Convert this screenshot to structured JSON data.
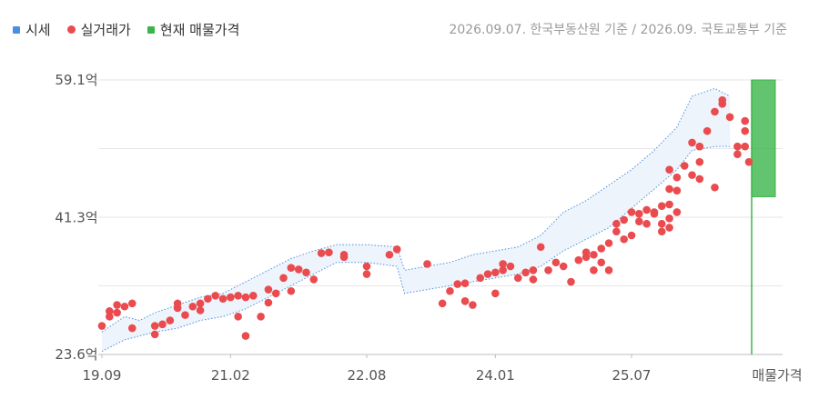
{
  "legend": {
    "estimate_label": "시세",
    "trade_label": "실거래가",
    "listing_label": "현재 매물가격"
  },
  "source_note": "2026.09.07. 한국부동산원 기준 / 2026.09. 국토교통부 기준",
  "colors": {
    "estimate": "#4a90e2",
    "band_fill": "#eef4fb",
    "trade": "#e94b4f",
    "listing": "#3bb54a",
    "grid": "#e6e6e6",
    "axis_text": "#555555"
  },
  "chart_data": {
    "type": "scatter",
    "y_ticks": [
      "59.1억",
      "41.3억",
      "23.6억"
    ],
    "y_tick_values": [
      59.1,
      41.3,
      23.6
    ],
    "ylim": [
      23.6,
      59.1
    ],
    "x_tick_labels": [
      "19.09",
      "21.02",
      "22.08",
      "24.01",
      "25.07",
      "매물가격"
    ],
    "x_tick_dates": [
      "2019-09",
      "2021-02",
      "2022-08",
      "2024-01",
      "2025-07"
    ],
    "xlim": [
      "2019-09",
      "2026-10"
    ],
    "grid": "horizontal",
    "series": [
      {
        "name": "시세",
        "kind": "band",
        "points": [
          {
            "x": "2019-09",
            "low": 24.0,
            "high": 26.5
          },
          {
            "x": "2019-12",
            "low": 25.5,
            "high": 28.5
          },
          {
            "x": "2020-02",
            "low": 26.0,
            "high": 28.0
          },
          {
            "x": "2020-04",
            "low": 26.5,
            "high": 29.0
          },
          {
            "x": "2020-07",
            "low": 27.0,
            "high": 30.0
          },
          {
            "x": "2020-10",
            "low": 28.0,
            "high": 31.0
          },
          {
            "x": "2021-01",
            "low": 28.5,
            "high": 31.5
          },
          {
            "x": "2021-04",
            "low": 29.5,
            "high": 33.0
          },
          {
            "x": "2021-07",
            "low": 31.0,
            "high": 34.5
          },
          {
            "x": "2021-10",
            "low": 32.5,
            "high": 36.0
          },
          {
            "x": "2022-01",
            "low": 34.0,
            "high": 37.0
          },
          {
            "x": "2022-04",
            "low": 35.5,
            "high": 37.8
          },
          {
            "x": "2022-08",
            "low": 35.5,
            "high": 37.8
          },
          {
            "x": "2022-12",
            "low": 35.0,
            "high": 37.5
          },
          {
            "x": "2023-01",
            "low": 31.5,
            "high": 34.5
          },
          {
            "x": "2023-04",
            "low": 32.0,
            "high": 35.0
          },
          {
            "x": "2023-07",
            "low": 32.5,
            "high": 35.5
          },
          {
            "x": "2023-10",
            "low": 33.0,
            "high": 36.5
          },
          {
            "x": "2024-01",
            "low": 33.5,
            "high": 37.0
          },
          {
            "x": "2024-04",
            "low": 34.0,
            "high": 37.5
          },
          {
            "x": "2024-07",
            "low": 35.0,
            "high": 39.0
          },
          {
            "x": "2024-10",
            "low": 37.0,
            "high": 42.0
          },
          {
            "x": "2025-01",
            "low": 38.5,
            "high": 43.5
          },
          {
            "x": "2025-04",
            "low": 40.0,
            "high": 45.5
          },
          {
            "x": "2025-07",
            "low": 42.5,
            "high": 47.5
          },
          {
            "x": "2025-10",
            "low": 45.0,
            "high": 50.0
          },
          {
            "x": "2026-01",
            "low": 47.5,
            "high": 53.0
          },
          {
            "x": "2026-03",
            "low": 50.0,
            "high": 57.0
          },
          {
            "x": "2026-06",
            "low": 50.5,
            "high": 58.0
          },
          {
            "x": "2026-08",
            "low": 50.5,
            "high": 57.0
          }
        ]
      },
      {
        "name": "실거래가",
        "kind": "scatter",
        "points": [
          {
            "x": "2019-09",
            "y": 27.3
          },
          {
            "x": "2019-10",
            "y": 28.5
          },
          {
            "x": "2019-10",
            "y": 29.2
          },
          {
            "x": "2019-11",
            "y": 30.0
          },
          {
            "x": "2019-11",
            "y": 29.0
          },
          {
            "x": "2019-12",
            "y": 29.8
          },
          {
            "x": "2020-01",
            "y": 30.2
          },
          {
            "x": "2020-01",
            "y": 27.0
          },
          {
            "x": "2020-04",
            "y": 27.3
          },
          {
            "x": "2020-04",
            "y": 26.2
          },
          {
            "x": "2020-05",
            "y": 27.5
          },
          {
            "x": "2020-06",
            "y": 28.0
          },
          {
            "x": "2020-07",
            "y": 29.6
          },
          {
            "x": "2020-07",
            "y": 30.2
          },
          {
            "x": "2020-08",
            "y": 28.7
          },
          {
            "x": "2020-09",
            "y": 29.8
          },
          {
            "x": "2020-10",
            "y": 30.2
          },
          {
            "x": "2020-10",
            "y": 29.3
          },
          {
            "x": "2020-11",
            "y": 30.8
          },
          {
            "x": "2020-12",
            "y": 31.2
          },
          {
            "x": "2021-01",
            "y": 30.8
          },
          {
            "x": "2021-02",
            "y": 31.0
          },
          {
            "x": "2021-03",
            "y": 31.2
          },
          {
            "x": "2021-03",
            "y": 28.5
          },
          {
            "x": "2021-04",
            "y": 31.0
          },
          {
            "x": "2021-04",
            "y": 26.0
          },
          {
            "x": "2021-05",
            "y": 31.2
          },
          {
            "x": "2021-06",
            "y": 28.5
          },
          {
            "x": "2021-07",
            "y": 30.3
          },
          {
            "x": "2021-07",
            "y": 32.0
          },
          {
            "x": "2021-08",
            "y": 31.5
          },
          {
            "x": "2021-09",
            "y": 33.5
          },
          {
            "x": "2021-10",
            "y": 31.8
          },
          {
            "x": "2021-10",
            "y": 34.8
          },
          {
            "x": "2021-11",
            "y": 34.6
          },
          {
            "x": "2021-12",
            "y": 34.2
          },
          {
            "x": "2022-01",
            "y": 33.3
          },
          {
            "x": "2022-02",
            "y": 36.7
          },
          {
            "x": "2022-03",
            "y": 36.8
          },
          {
            "x": "2022-05",
            "y": 36.5
          },
          {
            "x": "2022-05",
            "y": 36.2
          },
          {
            "x": "2022-08",
            "y": 35.0
          },
          {
            "x": "2022-08",
            "y": 34.0
          },
          {
            "x": "2022-11",
            "y": 36.5
          },
          {
            "x": "2022-12",
            "y": 37.2
          },
          {
            "x": "2023-04",
            "y": 35.3
          },
          {
            "x": "2023-06",
            "y": 30.2
          },
          {
            "x": "2023-07",
            "y": 31.8
          },
          {
            "x": "2023-08",
            "y": 32.7
          },
          {
            "x": "2023-09",
            "y": 30.5
          },
          {
            "x": "2023-09",
            "y": 32.8
          },
          {
            "x": "2023-10",
            "y": 30.0
          },
          {
            "x": "2023-11",
            "y": 33.5
          },
          {
            "x": "2023-12",
            "y": 34.0
          },
          {
            "x": "2024-01",
            "y": 31.5
          },
          {
            "x": "2024-01",
            "y": 34.2
          },
          {
            "x": "2024-02",
            "y": 35.3
          },
          {
            "x": "2024-02",
            "y": 34.5
          },
          {
            "x": "2024-03",
            "y": 35.0
          },
          {
            "x": "2024-04",
            "y": 33.5
          },
          {
            "x": "2024-05",
            "y": 34.2
          },
          {
            "x": "2024-06",
            "y": 33.3
          },
          {
            "x": "2024-06",
            "y": 34.5
          },
          {
            "x": "2024-07",
            "y": 37.5
          },
          {
            "x": "2024-08",
            "y": 34.5
          },
          {
            "x": "2024-09",
            "y": 35.5
          },
          {
            "x": "2024-10",
            "y": 35.0
          },
          {
            "x": "2024-11",
            "y": 33.0
          },
          {
            "x": "2024-12",
            "y": 35.8
          },
          {
            "x": "2025-01",
            "y": 36.2
          },
          {
            "x": "2025-01",
            "y": 36.8
          },
          {
            "x": "2025-02",
            "y": 34.5
          },
          {
            "x": "2025-02",
            "y": 36.5
          },
          {
            "x": "2025-03",
            "y": 37.3
          },
          {
            "x": "2025-03",
            "y": 35.5
          },
          {
            "x": "2025-04",
            "y": 38.0
          },
          {
            "x": "2025-04",
            "y": 34.5
          },
          {
            "x": "2025-05",
            "y": 39.5
          },
          {
            "x": "2025-05",
            "y": 40.5
          },
          {
            "x": "2025-06",
            "y": 38.5
          },
          {
            "x": "2025-06",
            "y": 41.0
          },
          {
            "x": "2025-07",
            "y": 39.0
          },
          {
            "x": "2025-07",
            "y": 42.0
          },
          {
            "x": "2025-08",
            "y": 41.8
          },
          {
            "x": "2025-08",
            "y": 40.8
          },
          {
            "x": "2025-09",
            "y": 40.5
          },
          {
            "x": "2025-09",
            "y": 42.3
          },
          {
            "x": "2025-10",
            "y": 41.8
          },
          {
            "x": "2025-10",
            "y": 42.0
          },
          {
            "x": "2025-11",
            "y": 42.8
          },
          {
            "x": "2025-11",
            "y": 40.5
          },
          {
            "x": "2025-11",
            "y": 39.5
          },
          {
            "x": "2025-12",
            "y": 41.2
          },
          {
            "x": "2025-12",
            "y": 43.0
          },
          {
            "x": "2025-12",
            "y": 45.0
          },
          {
            "x": "2025-12",
            "y": 47.5
          },
          {
            "x": "2025-12",
            "y": 40.0
          },
          {
            "x": "2026-01",
            "y": 42.0
          },
          {
            "x": "2026-01",
            "y": 44.8
          },
          {
            "x": "2026-01",
            "y": 46.5
          },
          {
            "x": "2026-02",
            "y": 48.0
          },
          {
            "x": "2026-03",
            "y": 46.8
          },
          {
            "x": "2026-03",
            "y": 51.0
          },
          {
            "x": "2026-04",
            "y": 46.3
          },
          {
            "x": "2026-04",
            "y": 48.5
          },
          {
            "x": "2026-04",
            "y": 50.5
          },
          {
            "x": "2026-05",
            "y": 52.5
          },
          {
            "x": "2026-06",
            "y": 45.2
          },
          {
            "x": "2026-06",
            "y": 55.0
          },
          {
            "x": "2026-07",
            "y": 56.0
          },
          {
            "x": "2026-07",
            "y": 56.5
          },
          {
            "x": "2026-08",
            "y": 54.3
          },
          {
            "x": "2026-09",
            "y": 49.5
          },
          {
            "x": "2026-09",
            "y": 50.5
          },
          {
            "x": "2026-10",
            "y": 50.5
          },
          {
            "x": "2026-10",
            "y": 52.5
          },
          {
            "x": "2026-10",
            "y": 53.8
          }
        ]
      },
      {
        "name": "현재 매물가격",
        "kind": "range",
        "low": 44.0,
        "high": 59.1,
        "point": 48.5
      }
    ]
  }
}
